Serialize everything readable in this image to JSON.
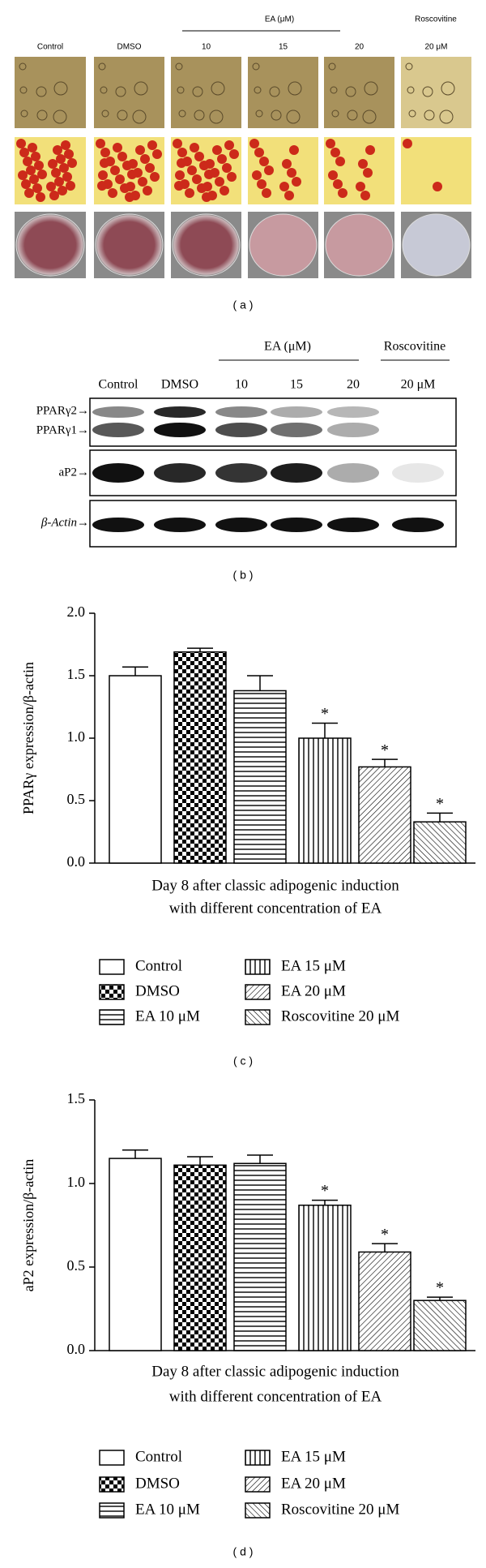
{
  "panel_a": {
    "columns": [
      "Control",
      "DMSO",
      "10",
      "15",
      "20",
      "20 μM"
    ],
    "group_label": "EA (μM)",
    "roscovitine_label": "Roscovitine",
    "caption": "( a )"
  },
  "panel_b": {
    "columns": [
      "Control",
      "DMSO",
      "10",
      "15",
      "20",
      "20 μM"
    ],
    "group_label": "EA (μM)",
    "roscovitine_label": "Roscovitine",
    "rows": [
      "PPARγ2→",
      "PPARγ1→",
      "aP2→",
      "β-Actin→"
    ],
    "caption": "( b )"
  },
  "chart_data": [
    {
      "type": "bar",
      "y_label": "PPARγ expression/β-actin",
      "x_label": [
        "Day 8 after classic adipogenic induction",
        "with different concentration of EA"
      ],
      "categories": [
        "Control",
        "DMSO",
        "EA 10 μM",
        "EA 15 μM",
        "EA 20 μM",
        "Roscovitine 20 μM"
      ],
      "values": [
        1.5,
        1.69,
        1.38,
        1.0,
        0.77,
        0.33
      ],
      "errors": [
        0.07,
        0.03,
        0.12,
        0.12,
        0.06,
        0.07
      ],
      "annotations": [
        null,
        null,
        null,
        "*",
        "*",
        "*"
      ],
      "patterns": [
        "none",
        "checker",
        "horizontal",
        "vertical",
        "diag-right",
        "diag-left"
      ],
      "color": "#000000",
      "ylim": [
        0,
        2
      ],
      "yticks": [
        {
          "value": 0,
          "label": "0.0"
        },
        0.5,
        {
          "value": 1,
          "label": "1.0"
        },
        1.5,
        {
          "value": 2,
          "label": "2.0"
        }
      ],
      "caption": "( c )"
    },
    {
      "type": "bar",
      "y_label": "aP2 expression/β-actin",
      "x_label": [
        "Day 8 after classic adipogenic induction",
        "with different concentration of EA"
      ],
      "categories": [
        "Control",
        "DMSO",
        "EA 10 μM",
        "EA 15 μM",
        "EA 20 μM",
        "Roscovitine 20 μM"
      ],
      "values": [
        1.15,
        1.11,
        1.12,
        0.87,
        0.59,
        0.3
      ],
      "errors": [
        0.05,
        0.05,
        0.05,
        0.03,
        0.05,
        0.02
      ],
      "annotations": [
        null,
        null,
        null,
        "*",
        "*",
        "*"
      ],
      "patterns": [
        "none",
        "checker",
        "horizontal",
        "vertical",
        "diag-right",
        "diag-left"
      ],
      "color": "#000000",
      "ylim": [
        0,
        1.5
      ],
      "yticks": [
        {
          "value": 0,
          "label": "0.0"
        },
        0.5,
        {
          "value": 1,
          "label": "1.0"
        },
        1.5
      ],
      "caption": "( d )"
    }
  ]
}
